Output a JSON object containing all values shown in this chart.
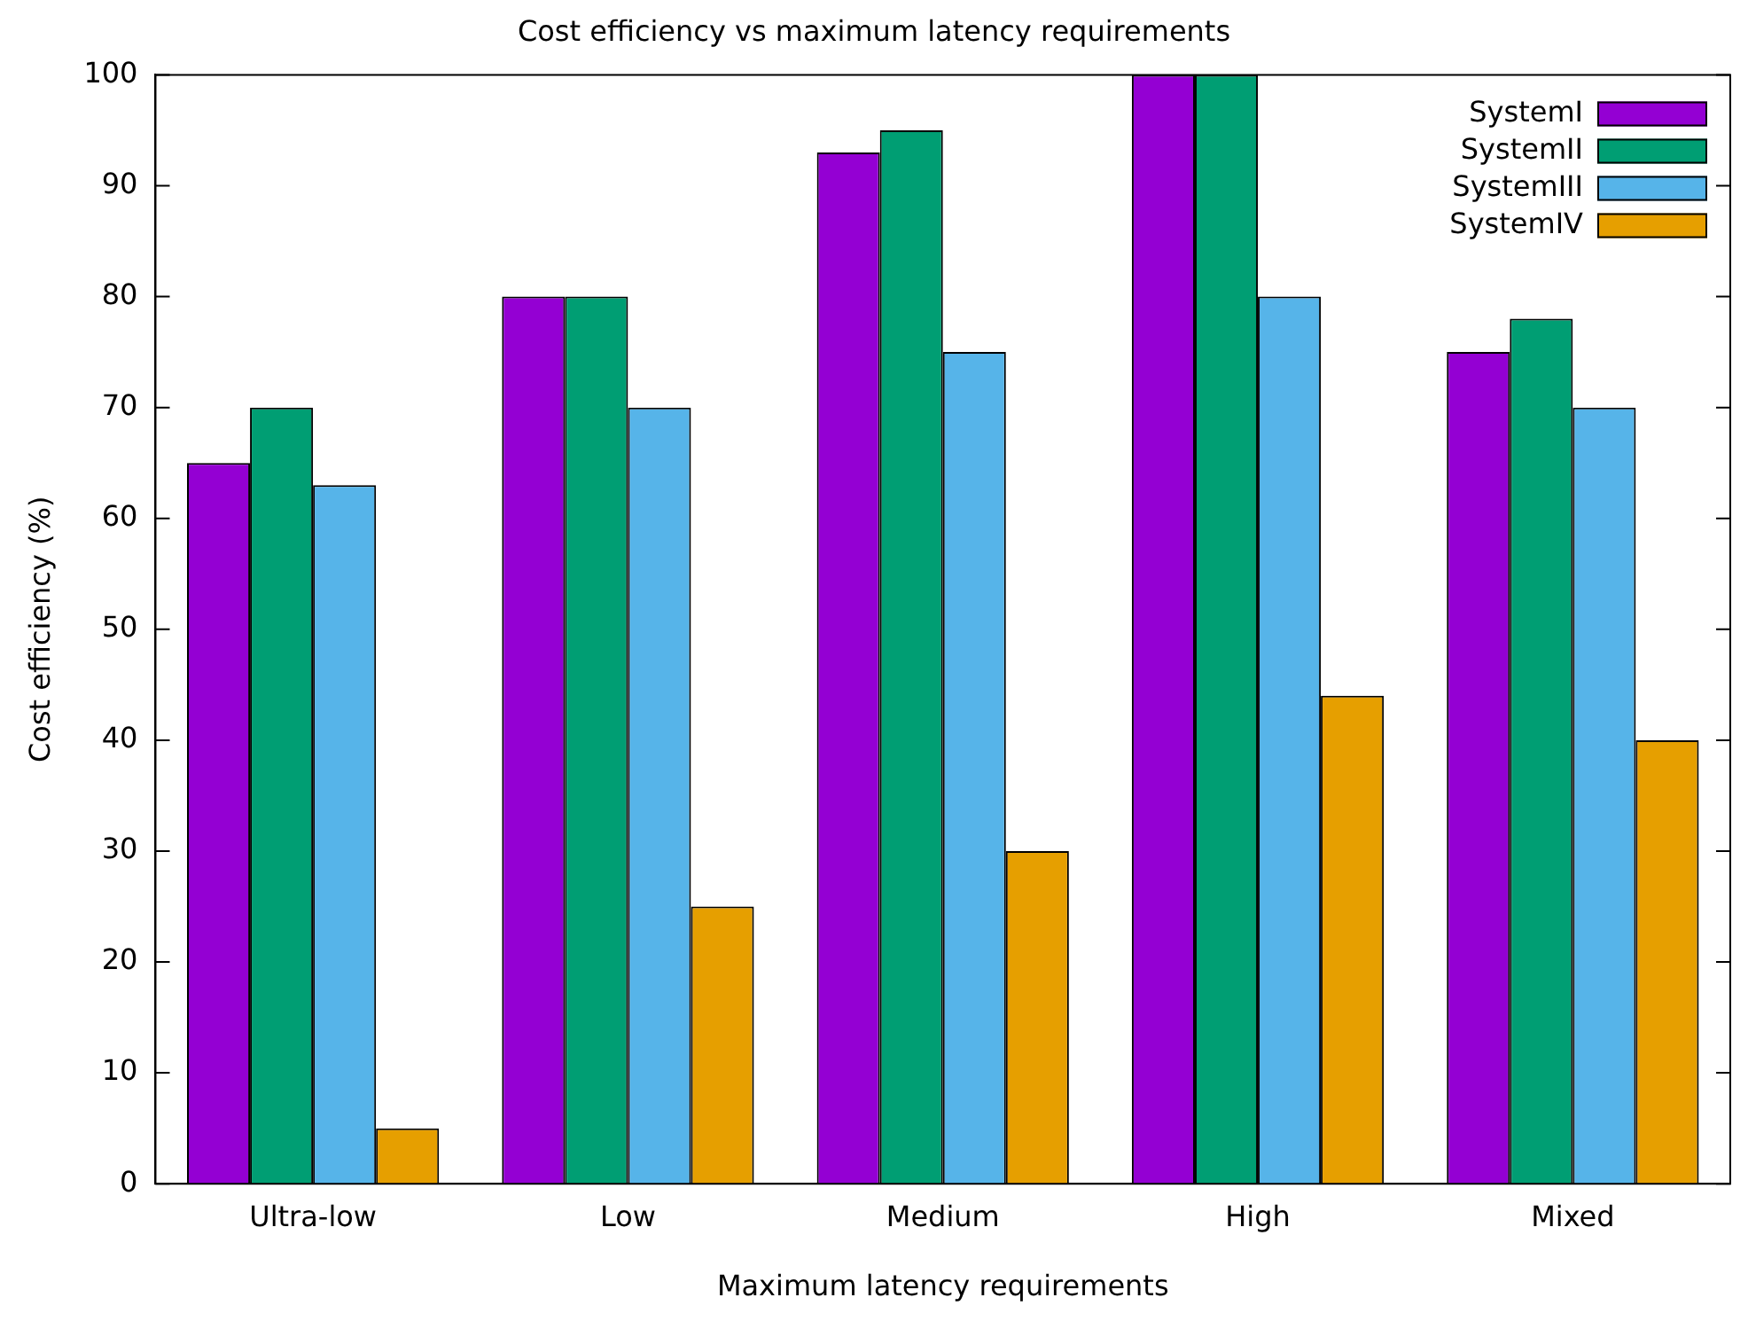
{
  "chart_data": {
    "type": "bar",
    "title": "Cost efficiency vs maximum latency requirements",
    "xlabel": "Maximum latency requirements",
    "ylabel": "Cost efficiency (%)",
    "categories": [
      "Ultra-low",
      "Low",
      "Medium",
      "High",
      "Mixed"
    ],
    "series": [
      {
        "name": "SystemI",
        "color": "#9400d3",
        "values": [
          65,
          80,
          93,
          100,
          75
        ]
      },
      {
        "name": "SystemII",
        "color": "#009e73",
        "values": [
          70,
          80,
          95,
          100,
          78
        ]
      },
      {
        "name": "SystemIII",
        "color": "#56b4e9",
        "values": [
          63,
          70,
          75,
          80,
          70
        ]
      },
      {
        "name": "SystemIV",
        "color": "#e69f00",
        "values": [
          5,
          25,
          30,
          44,
          40
        ]
      }
    ],
    "ylim": [
      0,
      100
    ],
    "yticks": [
      0,
      10,
      20,
      30,
      40,
      50,
      60,
      70,
      80,
      90,
      100
    ],
    "grid": false,
    "legend": "top right"
  }
}
